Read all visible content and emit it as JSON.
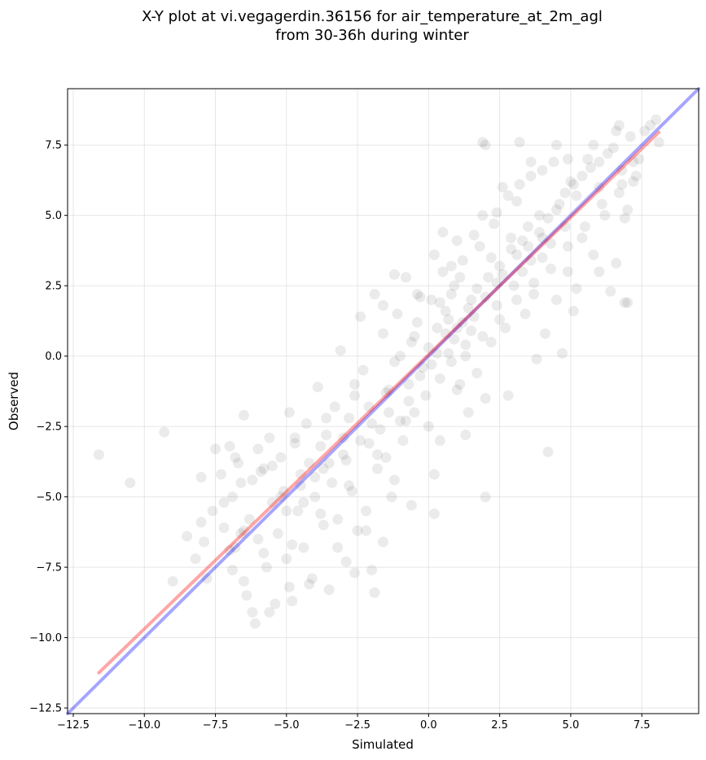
{
  "chart_data": {
    "type": "scatter",
    "title_line1": "X-Y plot at vi.vegagerdin.36156 for air_temperature_at_2m_agl",
    "title_line2": "from 30-36h during winter",
    "xlabel": "Simulated",
    "ylabel": "Observed",
    "xlim": [
      -12.7,
      9.5
    ],
    "ylim": [
      -12.7,
      9.5
    ],
    "x_ticks": [
      -12.5,
      -10.0,
      -7.5,
      -5.0,
      -2.5,
      0.0,
      2.5,
      5.0,
      7.5
    ],
    "y_ticks": [
      -12.5,
      -10.0,
      -7.5,
      -5.0,
      -2.5,
      0.0,
      2.5,
      5.0,
      7.5
    ],
    "x_tick_labels": [
      "−12.5",
      "−10.0",
      "−7.5",
      "−5.0",
      "−2.5",
      "0.0",
      "2.5",
      "5.0",
      "7.5"
    ],
    "y_tick_labels": [
      "−12.5",
      "−10.0",
      "−7.5",
      "−5.0",
      "−2.5",
      "0.0",
      "2.5",
      "5.0",
      "7.5"
    ],
    "grid": true,
    "point_color": "#000000",
    "point_opacity": 0.08,
    "identity_line": {
      "color": "#0000ff",
      "opacity": 0.35,
      "from": [
        -12.7,
        -12.7
      ],
      "to": [
        9.5,
        9.5
      ]
    },
    "fit_line": {
      "color": "#ff0000",
      "opacity": 0.35,
      "from": [
        -11.6,
        -11.25
      ],
      "to": [
        8.1,
        7.95
      ]
    },
    "points": [
      [
        -11.6,
        -3.5
      ],
      [
        -10.5,
        -4.5
      ],
      [
        -9.3,
        -2.7
      ],
      [
        -8.0,
        -4.3
      ],
      [
        -8.0,
        -5.9
      ],
      [
        -7.8,
        -7.9
      ],
      [
        -7.6,
        -5.5
      ],
      [
        -7.5,
        -3.3
      ],
      [
        -7.3,
        -4.2
      ],
      [
        -7.2,
        -6.1
      ],
      [
        -7.0,
        -3.2
      ],
      [
        -6.9,
        -5.0
      ],
      [
        -6.8,
        -6.8
      ],
      [
        -6.7,
        -3.8
      ],
      [
        -6.6,
        -4.5
      ],
      [
        -6.5,
        -2.1
      ],
      [
        -6.5,
        -8.0
      ],
      [
        -6.3,
        -5.8
      ],
      [
        -6.2,
        -9.1
      ],
      [
        -6.1,
        -9.5
      ],
      [
        -6.0,
        -3.3
      ],
      [
        -6.0,
        -6.5
      ],
      [
        -5.8,
        -4.0
      ],
      [
        -5.7,
        -7.5
      ],
      [
        -5.6,
        -2.9
      ],
      [
        -5.5,
        -5.2
      ],
      [
        -5.4,
        -8.8
      ],
      [
        -5.3,
        -6.3
      ],
      [
        -5.2,
        -3.6
      ],
      [
        -5.1,
        -4.8
      ],
      [
        -5.0,
        -7.2
      ],
      [
        -4.9,
        -2.0
      ],
      [
        -4.8,
        -8.7
      ],
      [
        -4.7,
        -3.1
      ],
      [
        -4.6,
        -5.5
      ],
      [
        -4.5,
        -4.2
      ],
      [
        -4.4,
        -6.8
      ],
      [
        -4.3,
        -2.4
      ],
      [
        -4.2,
        -3.8
      ],
      [
        -4.1,
        -7.9
      ],
      [
        -4.0,
        -5.0
      ],
      [
        -3.9,
        -1.1
      ],
      [
        -3.8,
        -3.2
      ],
      [
        -3.7,
        -6.0
      ],
      [
        -3.6,
        -2.8
      ],
      [
        -3.5,
        -8.3
      ],
      [
        -3.4,
        -4.5
      ],
      [
        -3.3,
        -1.8
      ],
      [
        -3.2,
        -5.8
      ],
      [
        -3.1,
        0.2
      ],
      [
        -3.0,
        -3.5
      ],
      [
        -2.9,
        -7.3
      ],
      [
        -2.8,
        -2.2
      ],
      [
        -2.7,
        -4.8
      ],
      [
        -2.6,
        -1.0
      ],
      [
        -2.5,
        -6.2
      ],
      [
        -2.4,
        -3.0
      ],
      [
        -2.3,
        -0.5
      ],
      [
        -2.2,
        -5.5
      ],
      [
        -2.1,
        -1.8
      ],
      [
        -2.0,
        -7.6
      ],
      [
        -1.9,
        -8.4
      ],
      [
        -1.9,
        2.2
      ],
      [
        -1.8,
        -4.0
      ],
      [
        -1.7,
        -2.6
      ],
      [
        -1.6,
        0.8
      ],
      [
        -1.5,
        -3.6
      ],
      [
        -1.4,
        -1.2
      ],
      [
        -1.3,
        -5.0
      ],
      [
        -1.2,
        -0.2
      ],
      [
        -1.1,
        1.5
      ],
      [
        -1.0,
        -2.3
      ],
      [
        -0.9,
        -3.0
      ],
      [
        -0.8,
        2.8
      ],
      [
        -0.7,
        -1.6
      ],
      [
        -0.6,
        0.5
      ],
      [
        -0.5,
        -2.0
      ],
      [
        -0.4,
        1.2
      ],
      [
        -0.3,
        2.1
      ],
      [
        -0.2,
        -0.4
      ],
      [
        -0.1,
        -1.4
      ],
      [
        0.0,
        0.3
      ],
      [
        0.1,
        2.0
      ],
      [
        0.2,
        -5.6
      ],
      [
        0.2,
        -4.2
      ],
      [
        0.3,
        1.0
      ],
      [
        0.4,
        -0.8
      ],
      [
        0.5,
        3.0
      ],
      [
        0.5,
        4.4
      ],
      [
        0.6,
        0.8
      ],
      [
        0.7,
        1.3
      ],
      [
        0.8,
        -0.2
      ],
      [
        0.9,
        2.5
      ],
      [
        1.0,
        1.0
      ],
      [
        1.1,
        -1.0
      ],
      [
        1.2,
        3.4
      ],
      [
        1.3,
        0.4
      ],
      [
        1.4,
        -2.0
      ],
      [
        1.5,
        2.0
      ],
      [
        1.6,
        1.4
      ],
      [
        1.7,
        -0.6
      ],
      [
        1.8,
        3.9
      ],
      [
        1.9,
        7.6
      ],
      [
        2.0,
        7.5
      ],
      [
        2.0,
        -5.0
      ],
      [
        2.0,
        -1.5
      ],
      [
        2.1,
        2.8
      ],
      [
        2.2,
        0.5
      ],
      [
        2.3,
        4.7
      ],
      [
        2.4,
        1.8
      ],
      [
        2.5,
        3.2
      ],
      [
        2.6,
        6.0
      ],
      [
        2.7,
        1.0
      ],
      [
        2.8,
        -1.4
      ],
      [
        2.9,
        4.2
      ],
      [
        3.0,
        2.5
      ],
      [
        3.1,
        5.5
      ],
      [
        3.2,
        7.6
      ],
      [
        3.3,
        3.0
      ],
      [
        3.4,
        1.5
      ],
      [
        3.5,
        4.6
      ],
      [
        3.6,
        6.4
      ],
      [
        3.7,
        2.2
      ],
      [
        3.8,
        -0.1
      ],
      [
        3.9,
        5.0
      ],
      [
        4.0,
        3.5
      ],
      [
        4.1,
        0.8
      ],
      [
        4.2,
        -3.4
      ],
      [
        4.3,
        4.0
      ],
      [
        4.4,
        6.9
      ],
      [
        4.5,
        2.0
      ],
      [
        4.6,
        5.4
      ],
      [
        4.7,
        0.1
      ],
      [
        4.8,
        4.6
      ],
      [
        4.9,
        3.0
      ],
      [
        5.0,
        6.2
      ],
      [
        5.1,
        1.6
      ],
      [
        5.2,
        5.7
      ],
      [
        5.4,
        4.2
      ],
      [
        5.6,
        7.0
      ],
      [
        5.8,
        3.6
      ],
      [
        6.0,
        6.0
      ],
      [
        6.2,
        5.0
      ],
      [
        6.4,
        2.3
      ],
      [
        6.5,
        7.4
      ],
      [
        6.6,
        3.3
      ],
      [
        6.7,
        8.2
      ],
      [
        6.8,
        6.6
      ],
      [
        6.9,
        1.9
      ],
      [
        7.0,
        5.2
      ],
      [
        7.1,
        7.8
      ],
      [
        7.2,
        6.2
      ],
      [
        7.4,
        7.0
      ],
      [
        7.6,
        8.0
      ],
      [
        7.8,
        8.2
      ],
      [
        8.0,
        8.4
      ],
      [
        8.1,
        7.6
      ],
      [
        -1.0,
        0.0
      ],
      [
        -0.5,
        0.7
      ],
      [
        0.3,
        0.1
      ],
      [
        0.6,
        1.6
      ],
      [
        0.9,
        0.6
      ],
      [
        1.2,
        1.2
      ],
      [
        1.5,
        0.9
      ],
      [
        0.4,
        1.9
      ],
      [
        0.8,
        2.2
      ],
      [
        -0.3,
        -0.7
      ],
      [
        1.1,
        2.8
      ],
      [
        1.7,
        2.4
      ],
      [
        2.2,
        3.5
      ],
      [
        2.6,
        2.9
      ],
      [
        2.9,
        3.8
      ],
      [
        3.3,
        4.1
      ],
      [
        3.6,
        3.4
      ],
      [
        3.9,
        4.4
      ],
      [
        4.2,
        4.9
      ],
      [
        4.5,
        5.2
      ],
      [
        4.8,
        5.8
      ],
      [
        5.1,
        6.1
      ],
      [
        5.4,
        6.4
      ],
      [
        5.7,
        6.7
      ],
      [
        6.0,
        6.9
      ],
      [
        6.3,
        7.2
      ],
      [
        3.1,
        3.6
      ],
      [
        3.5,
        3.9
      ],
      [
        4.0,
        4.2
      ],
      [
        2.4,
        2.6
      ],
      [
        2.0,
        2.1
      ],
      [
        1.4,
        1.7
      ],
      [
        -4.5,
        -4.6
      ],
      [
        -5.0,
        -5.5
      ],
      [
        -3.5,
        -3.8
      ],
      [
        -4.0,
        -4.3
      ],
      [
        -6.5,
        -6.2
      ],
      [
        -7.0,
        -6.9
      ],
      [
        -3.0,
        -2.9
      ],
      [
        -2.0,
        -2.4
      ],
      [
        -1.5,
        -1.3
      ],
      [
        -6.8,
        -3.6
      ],
      [
        -6.2,
        -4.4
      ],
      [
        -5.5,
        -3.9
      ],
      [
        -4.7,
        -2.9
      ],
      [
        -3.6,
        -2.2
      ],
      [
        -2.6,
        -1.4
      ],
      [
        -5.8,
        -7.0
      ],
      [
        -4.8,
        -6.7
      ],
      [
        -3.8,
        -5.6
      ],
      [
        -2.8,
        -4.6
      ],
      [
        -1.8,
        -3.5
      ],
      [
        -0.8,
        -2.3
      ],
      [
        -3.2,
        -6.8
      ],
      [
        -4.2,
        -8.1
      ],
      [
        -2.2,
        -6.2
      ],
      [
        -1.2,
        -4.4
      ],
      [
        0.0,
        -2.5
      ],
      [
        1.0,
        -1.2
      ],
      [
        -1.6,
        1.8
      ],
      [
        -0.4,
        2.2
      ],
      [
        0.8,
        3.2
      ],
      [
        1.6,
        4.3
      ],
      [
        2.4,
        5.1
      ],
      [
        3.2,
        6.1
      ],
      [
        4.0,
        6.6
      ],
      [
        4.9,
        7.0
      ],
      [
        5.8,
        7.5
      ],
      [
        6.6,
        8.0
      ],
      [
        5.2,
        2.4
      ],
      [
        6.0,
        3.0
      ],
      [
        6.9,
        4.9
      ],
      [
        7.0,
        1.9
      ],
      [
        6.8,
        6.1
      ],
      [
        7.3,
        6.4
      ],
      [
        -7.2,
        -5.2
      ],
      [
        -6.6,
        -6.3
      ],
      [
        -5.9,
        -4.1
      ],
      [
        -5.2,
        -5.0
      ],
      [
        -4.4,
        -5.2
      ],
      [
        -3.7,
        -4.0
      ],
      [
        -2.9,
        -3.7
      ],
      [
        -2.1,
        -3.1
      ],
      [
        -1.4,
        -2.0
      ],
      [
        -0.7,
        -1.0
      ],
      [
        0.1,
        -0.3
      ],
      [
        0.7,
        0.1
      ],
      [
        1.3,
        0.0
      ],
      [
        1.9,
        0.7
      ],
      [
        2.5,
        1.3
      ],
      [
        3.1,
        2.0
      ],
      [
        3.7,
        2.6
      ],
      [
        4.3,
        3.1
      ],
      [
        4.9,
        3.9
      ],
      [
        5.5,
        4.6
      ],
      [
        6.1,
        5.4
      ],
      [
        6.7,
        5.8
      ],
      [
        7.2,
        6.9
      ],
      [
        -8.5,
        -6.4
      ],
      [
        -8.2,
        -7.2
      ],
      [
        -7.9,
        -6.6
      ],
      [
        -6.9,
        -7.6
      ],
      [
        -6.4,
        -8.5
      ],
      [
        -5.6,
        -9.1
      ],
      [
        -4.9,
        -8.2
      ],
      [
        -2.6,
        -7.7
      ],
      [
        -1.6,
        -6.6
      ],
      [
        -0.6,
        -5.3
      ],
      [
        0.4,
        -3.0
      ],
      [
        1.3,
        -2.8
      ],
      [
        -2.4,
        1.4
      ],
      [
        -1.2,
        2.9
      ],
      [
        0.2,
        3.6
      ],
      [
        1.0,
        4.1
      ],
      [
        1.9,
        5.0
      ],
      [
        2.8,
        5.7
      ],
      [
        3.6,
        6.9
      ],
      [
        4.5,
        7.5
      ],
      [
        -9.0,
        -8.0
      ]
    ]
  }
}
